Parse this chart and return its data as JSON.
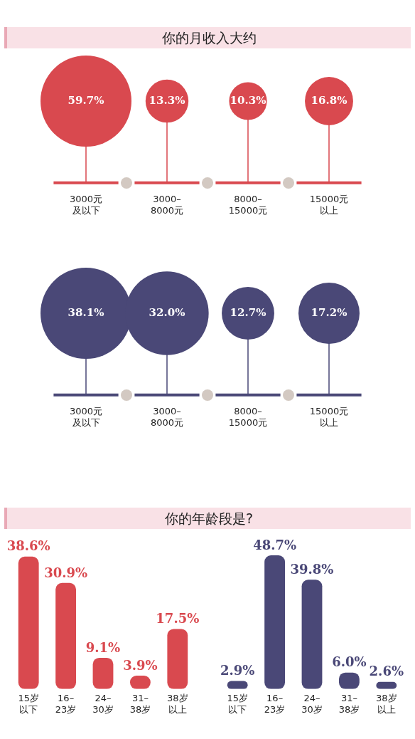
{
  "chart_data": [
    {
      "type": "other",
      "title": "你的月收入大约",
      "categories": [
        "3000元及以下",
        "3000–\n8000元",
        "8000–\n15000元",
        "15000元以上"
      ],
      "values": [
        59.7,
        13.3,
        10.3,
        16.8
      ],
      "value_labels": [
        "59.7%",
        "13.3%",
        "10.3%",
        "16.8%"
      ],
      "color": "#d9494f"
    },
    {
      "type": "other",
      "categories": [
        "3000元及以下",
        "3000–\n8000元",
        "8000–\n15000元",
        "15000元以上"
      ],
      "values": [
        38.1,
        32.0,
        12.7,
        17.2
      ],
      "value_labels": [
        "38.1%",
        "32.0%",
        "12.7%",
        "17.2%"
      ],
      "color": "#4a4877"
    },
    {
      "type": "bar",
      "title": "你的年龄段是?",
      "categories": [
        "15岁以下",
        "16–\n23岁",
        "24–\n30岁",
        "31–\n38岁",
        "38岁以上"
      ],
      "values": [
        38.6,
        30.9,
        9.1,
        3.9,
        17.5
      ],
      "value_labels": [
        "38.6%",
        "30.9%",
        "9.1%",
        "3.9%",
        "17.5%"
      ],
      "color": "#d9494f",
      "tick_labels": "x"
    },
    {
      "type": "bar",
      "categories": [
        "15岁以下",
        "16–\n23岁",
        "24–\n30岁",
        "31–\n38岁",
        "38岁以上"
      ],
      "values": [
        2.9,
        48.7,
        39.8,
        6.0,
        2.6
      ],
      "value_labels": [
        "2.9%",
        "48.7%",
        "39.8%",
        "6.0%",
        "2.6%"
      ],
      "color": "#4a4877",
      "tick_labels": "x"
    }
  ]
}
